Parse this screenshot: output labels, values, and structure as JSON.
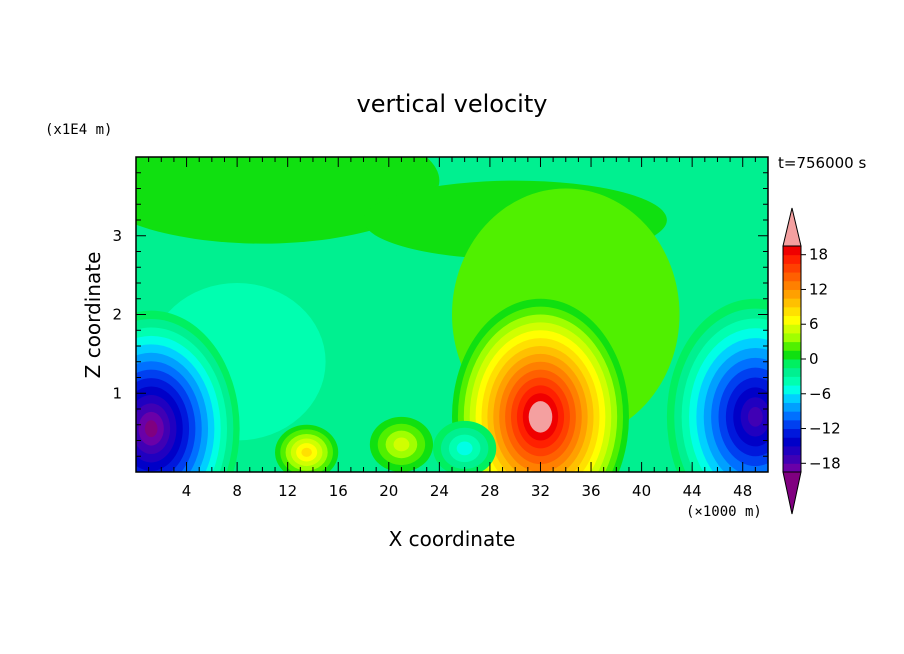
{
  "chart_data": {
    "type": "heatmap",
    "title": "vertical velocity",
    "xlabel": "X coordinate",
    "ylabel": "Z coordinate",
    "x_unit": "(×1000 m)",
    "y_unit": "(x1E4 m)",
    "time_label": "t=756000 s",
    "xlim": [
      0,
      50
    ],
    "ylim": [
      0,
      4
    ],
    "x_ticks": [
      "4",
      "8",
      "12",
      "16",
      "20",
      "24",
      "28",
      "32",
      "36",
      "40",
      "44",
      "48"
    ],
    "y_ticks": [
      "1",
      "2",
      "3"
    ],
    "colorbar": {
      "tick_labels": [
        "18",
        "12",
        "6",
        "0",
        "−6",
        "−12",
        "−18"
      ],
      "tick_values": [
        18,
        12,
        6,
        0,
        -6,
        -12,
        -18
      ],
      "levels": [
        -21,
        -19.5,
        -18,
        -16.5,
        -15,
        -13.5,
        -12,
        -10.5,
        -9,
        -7.5,
        -6,
        -4.5,
        -3,
        -1.5,
        0,
        1.5,
        3,
        4.5,
        6,
        7.5,
        9,
        10.5,
        12,
        13.5,
        15,
        16.5,
        18,
        19.5,
        21
      ],
      "colors": [
        "#800080",
        "#6a00a8",
        "#4000b4",
        "#2000c0",
        "#0000c8",
        "#0018dc",
        "#0040f0",
        "#0070ff",
        "#00a0ff",
        "#00d0ff",
        "#00ffe6",
        "#00ffb0",
        "#00f090",
        "#00f060",
        "#10e010",
        "#50f000",
        "#a0ff00",
        "#d0ff00",
        "#ffff00",
        "#ffe000",
        "#ffc000",
        "#ffa000",
        "#ff8000",
        "#ff6000",
        "#ff4000",
        "#ff2000",
        "#f00000",
        "#f4a0a0"
      ]
    },
    "features": [
      {
        "x": 32,
        "z": 0.7,
        "w": 22,
        "kind": "updraft maximum"
      },
      {
        "x": 1.2,
        "z": 0.55,
        "w": -21,
        "kind": "downdraft minimum"
      },
      {
        "x": 49,
        "z": 0.7,
        "w": -18,
        "kind": "downdraft minimum"
      },
      {
        "x": 13.5,
        "z": 0.25,
        "w": 9,
        "kind": "updraft"
      },
      {
        "x": 21,
        "z": 0.35,
        "w": 6,
        "kind": "updraft"
      },
      {
        "x": 26,
        "z": 0.3,
        "w": -6,
        "kind": "downdraft"
      }
    ]
  }
}
